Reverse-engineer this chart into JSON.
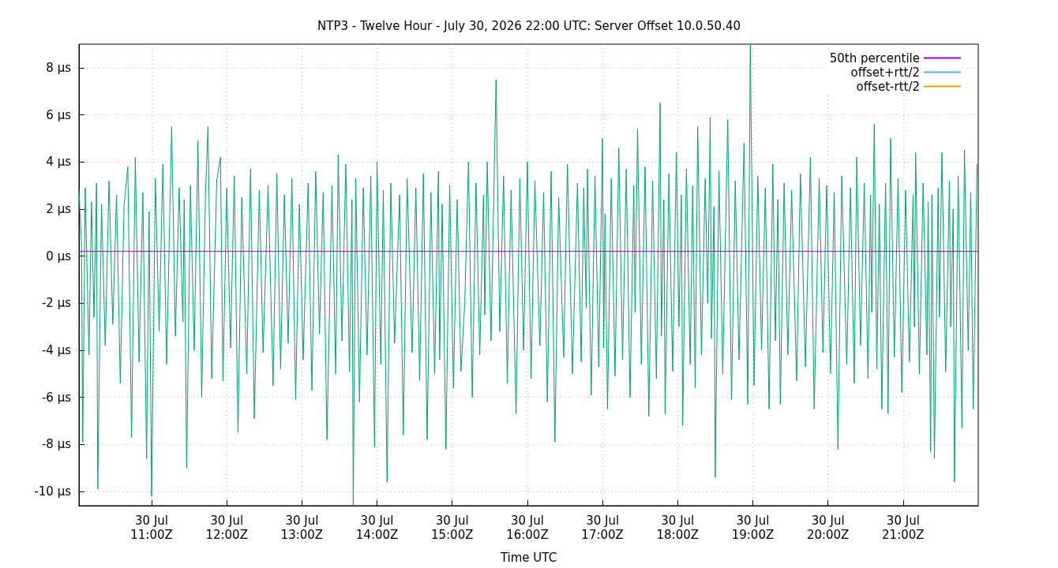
{
  "chart_data": {
    "type": "line",
    "title": "NTP3 - Twelve Hour - July 30, 2026 22:00 UTC: Server Offset 10.0.50.40",
    "xlabel": "Time UTC",
    "xlim": [
      "2026-07-30T10:02",
      "2026-07-30T22:00"
    ],
    "xticks": [
      {
        "value": "2026-07-30T11:00",
        "label": "30 Jul\n11:00Z"
      },
      {
        "value": "2026-07-30T12:00",
        "label": "30 Jul\n12:00Z"
      },
      {
        "value": "2026-07-30T13:00",
        "label": "30 Jul\n13:00Z"
      },
      {
        "value": "2026-07-30T14:00",
        "label": "30 Jul\n14:00Z"
      },
      {
        "value": "2026-07-30T15:00",
        "label": "30 Jul\n15:00Z"
      },
      {
        "value": "2026-07-30T16:00",
        "label": "30 Jul\n16:00Z"
      },
      {
        "value": "2026-07-30T17:00",
        "label": "30 Jul\n17:00Z"
      },
      {
        "value": "2026-07-30T18:00",
        "label": "30 Jul\n18:00Z"
      },
      {
        "value": "2026-07-30T19:00",
        "label": "30 Jul\n19:00Z"
      },
      {
        "value": "2026-07-30T20:00",
        "label": "30 Jul\n20:00Z"
      },
      {
        "value": "2026-07-30T21:00",
        "label": "30 Jul\n21:00Z"
      }
    ],
    "ylim": [
      -10.6,
      9.0
    ],
    "yticks": [
      {
        "value": -10,
        "label": "-10 µs"
      },
      {
        "value": -8,
        "label": "-8 µs"
      },
      {
        "value": -6,
        "label": "-6 µs"
      },
      {
        "value": -4,
        "label": "-4 µs"
      },
      {
        "value": -2,
        "label": "-2 µs"
      },
      {
        "value": 0,
        "label": "0 µs"
      },
      {
        "value": 2,
        "label": "2 µs"
      },
      {
        "value": 4,
        "label": "4 µs"
      },
      {
        "value": 6,
        "label": "6 µs"
      },
      {
        "value": 8,
        "label": "8 µs"
      }
    ],
    "grid": true,
    "legend": "top right",
    "marker": "none",
    "line_style": "solid",
    "series": [
      {
        "name": "50th percentile",
        "color": "#9400d3",
        "x": [
          "2026-07-30T10:02",
          "2026-07-30T22:00"
        ],
        "values": [
          0.2,
          0.2
        ]
      },
      {
        "color": "#009e73",
        "x": [
          "2026-07-30T10:02",
          "2026-07-30T10:04",
          "2026-07-30T10:05",
          "2026-07-30T10:07",
          "2026-07-30T10:10",
          "2026-07-30T10:12",
          "2026-07-30T10:14",
          "2026-07-30T10:16",
          "2026-07-30T10:17",
          "2026-07-30T10:20",
          "2026-07-30T10:23",
          "2026-07-30T10:26",
          "2026-07-30T10:29",
          "2026-07-30T10:32",
          "2026-07-30T10:35",
          "2026-07-30T10:38",
          "2026-07-30T10:41",
          "2026-07-30T10:44",
          "2026-07-30T10:47",
          "2026-07-30T10:50",
          "2026-07-30T10:53",
          "2026-07-30T10:56",
          "2026-07-30T10:58",
          "2026-07-30T11:00",
          "2026-07-30T11:03",
          "2026-07-30T11:06",
          "2026-07-30T11:09",
          "2026-07-30T11:12",
          "2026-07-30T11:16",
          "2026-07-30T11:19",
          "2026-07-30T11:22",
          "2026-07-30T11:25",
          "2026-07-30T11:26",
          "2026-07-30T11:28",
          "2026-07-30T11:31",
          "2026-07-30T11:34",
          "2026-07-30T11:37",
          "2026-07-30T11:40",
          "2026-07-30T11:43",
          "2026-07-30T11:45",
          "2026-07-30T11:48",
          "2026-07-30T11:52",
          "2026-07-30T11:55",
          "2026-07-30T11:57",
          "2026-07-30T12:00",
          "2026-07-30T12:03",
          "2026-07-30T12:06",
          "2026-07-30T12:09",
          "2026-07-30T12:12",
          "2026-07-30T12:16",
          "2026-07-30T12:19",
          "2026-07-30T12:22",
          "2026-07-30T12:26",
          "2026-07-30T12:29",
          "2026-07-30T12:33",
          "2026-07-30T12:37",
          "2026-07-30T12:40",
          "2026-07-30T12:43",
          "2026-07-30T12:46",
          "2026-07-30T12:49",
          "2026-07-30T12:52",
          "2026-07-30T12:55",
          "2026-07-30T12:58",
          "2026-07-30T13:01",
          "2026-07-30T13:05",
          "2026-07-30T13:08",
          "2026-07-30T13:11",
          "2026-07-30T13:14",
          "2026-07-30T13:17",
          "2026-07-30T13:20",
          "2026-07-30T13:24",
          "2026-07-30T13:27",
          "2026-07-30T13:29",
          "2026-07-30T13:32",
          "2026-07-30T13:35",
          "2026-07-30T13:38",
          "2026-07-30T13:40",
          "2026-07-30T13:41",
          "2026-07-30T13:43",
          "2026-07-30T13:46",
          "2026-07-30T13:49",
          "2026-07-30T13:52",
          "2026-07-30T13:55",
          "2026-07-30T13:58",
          "2026-07-30T14:00",
          "2026-07-30T14:03",
          "2026-07-30T14:05",
          "2026-07-30T14:08",
          "2026-07-30T14:11",
          "2026-07-30T14:14",
          "2026-07-30T14:18",
          "2026-07-30T14:21",
          "2026-07-30T14:24",
          "2026-07-30T14:28",
          "2026-07-30T14:31",
          "2026-07-30T14:34",
          "2026-07-30T14:37",
          "2026-07-30T14:40",
          "2026-07-30T14:43",
          "2026-07-30T14:46",
          "2026-07-30T14:49",
          "2026-07-30T14:50",
          "2026-07-30T14:52",
          "2026-07-30T14:55",
          "2026-07-30T14:58",
          "2026-07-30T15:01",
          "2026-07-30T15:04",
          "2026-07-30T15:07",
          "2026-07-30T15:10",
          "2026-07-30T15:13",
          "2026-07-30T15:16",
          "2026-07-30T15:19",
          "2026-07-30T15:22",
          "2026-07-30T15:25",
          "2026-07-30T15:26",
          "2026-07-30T15:28",
          "2026-07-30T15:31",
          "2026-07-30T15:35",
          "2026-07-30T15:38",
          "2026-07-30T15:41",
          "2026-07-30T15:44",
          "2026-07-30T15:47",
          "2026-07-30T15:51",
          "2026-07-30T15:54",
          "2026-07-30T15:57",
          "2026-07-30T16:00",
          "2026-07-30T16:03",
          "2026-07-30T16:06",
          "2026-07-30T16:10",
          "2026-07-30T16:13",
          "2026-07-30T16:16",
          "2026-07-30T16:19",
          "2026-07-30T16:22",
          "2026-07-30T16:25",
          "2026-07-30T16:29",
          "2026-07-30T16:32",
          "2026-07-30T16:36",
          "2026-07-30T16:40",
          "2026-07-30T16:43",
          "2026-07-30T16:45",
          "2026-07-30T16:47",
          "2026-07-30T16:48",
          "2026-07-30T16:51",
          "2026-07-30T16:54",
          "2026-07-30T16:57",
          "2026-07-30T17:00",
          "2026-07-30T17:01",
          "2026-07-30T17:02",
          "2026-07-30T17:04",
          "2026-07-30T17:07",
          "2026-07-30T17:10",
          "2026-07-30T17:13",
          "2026-07-30T17:16",
          "2026-07-30T17:19",
          "2026-07-30T17:22",
          "2026-07-30T17:25",
          "2026-07-30T17:26",
          "2026-07-30T17:28",
          "2026-07-30T17:31",
          "2026-07-30T17:34",
          "2026-07-30T17:37",
          "2026-07-30T17:40",
          "2026-07-30T17:43",
          "2026-07-30T17:46",
          "2026-07-30T17:47",
          "2026-07-30T17:49",
          "2026-07-30T17:50",
          "2026-07-30T17:53",
          "2026-07-30T17:56",
          "2026-07-30T17:59",
          "2026-07-30T18:01",
          "2026-07-30T18:03",
          "2026-07-30T18:04",
          "2026-07-30T18:07",
          "2026-07-30T18:10",
          "2026-07-30T18:12",
          "2026-07-30T18:14",
          "2026-07-30T18:16",
          "2026-07-30T18:19",
          "2026-07-30T18:22",
          "2026-07-30T18:24",
          "2026-07-30T18:26",
          "2026-07-30T18:27",
          "2026-07-30T18:29",
          "2026-07-30T18:30",
          "2026-07-30T18:33",
          "2026-07-30T18:36",
          "2026-07-30T18:40",
          "2026-07-30T18:43",
          "2026-07-30T18:46",
          "2026-07-30T18:49",
          "2026-07-30T18:53",
          "2026-07-30T18:56",
          "2026-07-30T18:58",
          "2026-07-30T19:01",
          "2026-07-30T19:04",
          "2026-07-30T19:07",
          "2026-07-30T19:10",
          "2026-07-30T19:13",
          "2026-07-30T19:16",
          "2026-07-30T19:18",
          "2026-07-30T19:20",
          "2026-07-30T19:22",
          "2026-07-30T19:25",
          "2026-07-30T19:28",
          "2026-07-30T19:31",
          "2026-07-30T19:35",
          "2026-07-30T19:38",
          "2026-07-30T19:42",
          "2026-07-30T19:46",
          "2026-07-30T19:49",
          "2026-07-30T19:53",
          "2026-07-30T19:56",
          "2026-07-30T19:59",
          "2026-07-30T20:02",
          "2026-07-30T20:05",
          "2026-07-30T20:08",
          "2026-07-30T20:11",
          "2026-07-30T20:15",
          "2026-07-30T20:18",
          "2026-07-30T20:21",
          "2026-07-30T20:23",
          "2026-07-30T20:26",
          "2026-07-30T20:29",
          "2026-07-30T20:32",
          "2026-07-30T20:34",
          "2026-07-30T20:35",
          "2026-07-30T20:37",
          "2026-07-30T20:39",
          "2026-07-30T20:41",
          "2026-07-30T20:43",
          "2026-07-30T20:46",
          "2026-07-30T20:48",
          "2026-07-30T20:50",
          "2026-07-30T20:53",
          "2026-07-30T20:56",
          "2026-07-30T20:59",
          "2026-07-30T21:02",
          "2026-07-30T21:05",
          "2026-07-30T21:08",
          "2026-07-30T21:09",
          "2026-07-30T21:10",
          "2026-07-30T21:13",
          "2026-07-30T21:16",
          "2026-07-30T21:19",
          "2026-07-30T21:20",
          "2026-07-30T21:22",
          "2026-07-30T21:23",
          "2026-07-30T21:25",
          "2026-07-30T21:28",
          "2026-07-30T21:29",
          "2026-07-30T21:31",
          "2026-07-30T21:34",
          "2026-07-30T21:37",
          "2026-07-30T21:38",
          "2026-07-30T21:40",
          "2026-07-30T21:41",
          "2026-07-30T21:44",
          "2026-07-30T21:47",
          "2026-07-30T21:49",
          "2026-07-30T21:52",
          "2026-07-30T21:54",
          "2026-07-30T21:56",
          "2026-07-30T21:59"
        ],
        "values": [
          2.8,
          0.5,
          -7.9,
          2.9,
          -4.2,
          2.3,
          -2.6,
          3.1,
          -9.9,
          2.2,
          -3.8,
          3.2,
          -2.9,
          2.6,
          -5.4,
          2.1,
          3.8,
          -7.7,
          4.2,
          -4.5,
          2.7,
          -8.6,
          1.9,
          -10.2,
          3.3,
          -3.2,
          3.9,
          -4.6,
          5.5,
          -3.4,
          2.9,
          -2.8,
          2.4,
          -9.0,
          3.0,
          -4.0,
          4.9,
          -6.0,
          2.6,
          5.5,
          -5.2,
          3.2,
          4.2,
          -5.3,
          2.9,
          -3.9,
          3.4,
          -7.5,
          2.5,
          -5.0,
          3.7,
          -6.9,
          2.8,
          -4.1,
          3.0,
          -5.5,
          3.5,
          -4.8,
          2.6,
          -3.7,
          3.3,
          -6.1,
          2.2,
          -4.4,
          3.1,
          -5.7,
          3.6,
          -3.3,
          2.7,
          -7.8,
          3.0,
          -5.0,
          4.3,
          -3.6,
          3.9,
          -4.9,
          2.4,
          -10.6,
          3.3,
          -6.2,
          2.9,
          -4.2,
          3.4,
          -8.1,
          4.0,
          -4.6,
          2.8,
          -9.6,
          3.1,
          -3.7,
          2.6,
          -7.6,
          3.3,
          -4.1,
          2.9,
          -5.3,
          3.5,
          -7.8,
          2.7,
          -5.0,
          3.6,
          -4.4,
          2.2,
          -8.2,
          3.0,
          -5.6,
          2.4,
          -4.9,
          -2.0,
          4.0,
          -6.0,
          3.1,
          -4.2,
          2.6,
          -2.5,
          4.0,
          -3.6,
          7.5,
          -3.2,
          3.4,
          -5.4,
          2.8,
          -6.7,
          3.3,
          -4.0,
          4.0,
          -5.2,
          3.2,
          -3.8,
          2.7,
          -6.2,
          3.6,
          -7.9,
          2.5,
          -4.3,
          3.9,
          -5.0,
          3.1,
          -4.5,
          2.9,
          -2.2,
          3.7,
          -5.9,
          3.4,
          -4.7,
          5.0,
          -3.9,
          1.8,
          -6.5,
          3.3,
          -5.1,
          4.6,
          -4.4,
          3.7,
          -6.0,
          3.0,
          -2.4,
          5.4,
          -4.6,
          3.8,
          -6.8,
          3.2,
          -5.2,
          6.5,
          -3.4,
          2.4,
          -6.7,
          3.5,
          -4.9,
          4.4,
          -3.0,
          2.6,
          -7.2,
          3.7,
          -4.6,
          3.0,
          -5.6,
          5.5,
          -4.2,
          3.3,
          -2.0,
          5.9,
          -3.5,
          2.1,
          -9.4,
          3.6,
          -5.0,
          5.8,
          -6.1,
          3.2,
          -4.4,
          4.8,
          -6.3,
          9.0,
          -5.5,
          3.4,
          -4.0,
          2.9,
          -6.5,
          3.9,
          -3.6,
          2.4,
          -6.3,
          3.1,
          -4.2,
          2.8,
          -5.3,
          3.5,
          -4.7,
          4.2,
          -6.5,
          3.3,
          -4.1,
          3.0,
          -5.0,
          2.7,
          -8.2,
          3.4,
          -4.6,
          2.9,
          -5.4,
          4.2,
          -3.8,
          3.1,
          -5.2,
          2.6,
          -2.4,
          5.6,
          -4.8,
          2.2,
          -6.5,
          3.1,
          -6.7,
          5.0,
          -4.3,
          3.3,
          -5.8,
          2.8,
          -4.5,
          2.6,
          -3.0,
          4.4,
          -5.0,
          3.1,
          -4.2,
          2.3,
          -8.3,
          2.6,
          -8.6,
          2.9,
          -2.6,
          4.4,
          -4.9,
          3.2,
          -3.0,
          2.0,
          -9.6,
          3.4,
          -7.3,
          4.5,
          -4.0,
          2.7,
          -6.5,
          3.9
        ]
      },
      {
        "name": "offset+rtt/2",
        "color": "#56b4e9"
      },
      {
        "name": "offset-rtt/2",
        "color": "#e69f00"
      }
    ]
  }
}
